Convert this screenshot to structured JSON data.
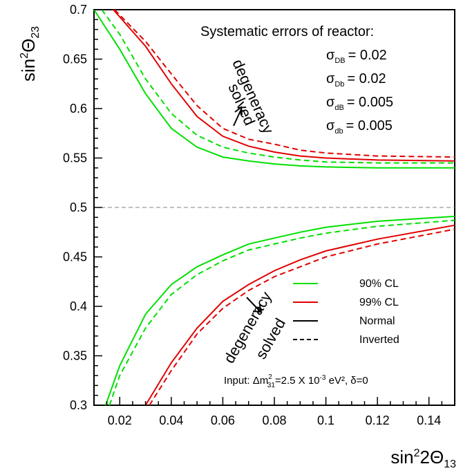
{
  "chart_data": {
    "type": "line",
    "xlabel": "sin²2Θ₁₃",
    "ylabel": "sin²Θ₂₃",
    "xlim": [
      0.01,
      0.15
    ],
    "ylim": [
      0.3,
      0.7
    ],
    "x_ticks": [
      0.02,
      0.04,
      0.06,
      0.08,
      0.1,
      0.12,
      0.14
    ],
    "x_tick_labels": [
      "0.02",
      "0.04",
      "0.06",
      "0.08",
      "0.1",
      "0.12",
      "0.14"
    ],
    "y_ticks": [
      0.3,
      0.35,
      0.4,
      0.45,
      0.5,
      0.55,
      0.6,
      0.65,
      0.7
    ],
    "y_tick_labels": [
      "0.3",
      "0.35",
      "0.4",
      "0.45",
      "0.5",
      "0.55",
      "0.6",
      "0.65",
      "0.7"
    ],
    "reference_line": {
      "y": 0.5,
      "style": "dashed",
      "color": "#808080"
    },
    "series": [
      {
        "name": "90% CL Normal (upper)",
        "color": "#00e000",
        "dash": "solid",
        "x": [
          0.01,
          0.02,
          0.03,
          0.04,
          0.05,
          0.06,
          0.07,
          0.08,
          0.09,
          0.1,
          0.12,
          0.15
        ],
        "y": [
          0.7,
          0.66,
          0.615,
          0.58,
          0.561,
          0.551,
          0.547,
          0.544,
          0.542,
          0.541,
          0.54,
          0.54
        ]
      },
      {
        "name": "90% CL Inverted (upper)",
        "color": "#00e000",
        "dash": "dashed",
        "x": [
          0.013,
          0.02,
          0.03,
          0.04,
          0.05,
          0.06,
          0.07,
          0.08,
          0.09,
          0.1,
          0.12,
          0.15
        ],
        "y": [
          0.7,
          0.675,
          0.63,
          0.595,
          0.573,
          0.561,
          0.555,
          0.551,
          0.548,
          0.546,
          0.545,
          0.545
        ]
      },
      {
        "name": "99% CL Normal (upper)",
        "color": "#e00000",
        "dash": "solid",
        "x": [
          0.0175,
          0.03,
          0.04,
          0.05,
          0.06,
          0.07,
          0.08,
          0.09,
          0.1,
          0.12,
          0.15
        ],
        "y": [
          0.7,
          0.663,
          0.625,
          0.592,
          0.572,
          0.562,
          0.556,
          0.552,
          0.55,
          0.548,
          0.547
        ]
      },
      {
        "name": "99% CL Inverted (upper)",
        "color": "#e00000",
        "dash": "dashed",
        "x": [
          0.018,
          0.03,
          0.04,
          0.05,
          0.06,
          0.07,
          0.08,
          0.09,
          0.1,
          0.12,
          0.15
        ],
        "y": [
          0.7,
          0.668,
          0.635,
          0.603,
          0.58,
          0.569,
          0.564,
          0.558,
          0.555,
          0.552,
          0.551
        ]
      },
      {
        "name": "90% CL Normal (lower)",
        "color": "#00e000",
        "dash": "solid",
        "x": [
          0.0145,
          0.02,
          0.03,
          0.04,
          0.05,
          0.06,
          0.07,
          0.08,
          0.09,
          0.1,
          0.12,
          0.15
        ],
        "y": [
          0.3,
          0.34,
          0.392,
          0.422,
          0.44,
          0.452,
          0.463,
          0.469,
          0.475,
          0.48,
          0.486,
          0.491
        ]
      },
      {
        "name": "90% CL Inverted (lower)",
        "color": "#00e000",
        "dash": "dashed",
        "x": [
          0.016,
          0.02,
          0.03,
          0.04,
          0.05,
          0.06,
          0.07,
          0.08,
          0.09,
          0.1,
          0.12,
          0.15
        ],
        "y": [
          0.3,
          0.33,
          0.378,
          0.412,
          0.432,
          0.446,
          0.457,
          0.463,
          0.469,
          0.474,
          0.481,
          0.487
        ]
      },
      {
        "name": "99% CL Normal (lower)",
        "color": "#e00000",
        "dash": "solid",
        "x": [
          0.03,
          0.04,
          0.05,
          0.06,
          0.07,
          0.08,
          0.09,
          0.1,
          0.12,
          0.15
        ],
        "y": [
          0.3,
          0.343,
          0.378,
          0.405,
          0.422,
          0.436,
          0.447,
          0.456,
          0.468,
          0.482
        ]
      },
      {
        "name": "99% CL Inverted (lower)",
        "color": "#e00000",
        "dash": "dashed",
        "x": [
          0.0315,
          0.04,
          0.05,
          0.06,
          0.07,
          0.08,
          0.09,
          0.1,
          0.12,
          0.15
        ],
        "y": [
          0.3,
          0.335,
          0.372,
          0.398,
          0.416,
          0.43,
          0.44,
          0.45,
          0.463,
          0.478
        ]
      }
    ],
    "legend": {
      "position": "bottom-right",
      "entries": [
        {
          "label": "90% CL",
          "color": "#00e000",
          "dash": "solid"
        },
        {
          "label": "99% CL",
          "color": "#e00000",
          "dash": "solid"
        },
        {
          "label": "Normal",
          "color": "#000000",
          "dash": "solid"
        },
        {
          "label": "Inverted",
          "color": "#000000",
          "dash": "dashed"
        }
      ]
    },
    "info_box": {
      "title": "Systematic errors of reactor:",
      "lines": [
        {
          "symbol": "σ",
          "sub": "DB",
          "value": "= 0.02"
        },
        {
          "symbol": "σ",
          "sub": "Db",
          "value": "= 0.02"
        },
        {
          "symbol": "σ",
          "sub": "dB",
          "value": "= 0.005"
        },
        {
          "symbol": "σ",
          "sub": "db",
          "value": "= 0.005"
        }
      ]
    },
    "input_note": {
      "prefix": "Input: Δm",
      "sup": "2",
      "sub": "31",
      "mid": "=2.5 X 10",
      "exp": "-3",
      "suffix": " eV², δ=0"
    },
    "annotations": [
      {
        "text1": "degeneracy",
        "text2": "solved"
      },
      {
        "text1": "degeneracy",
        "text2": "solved"
      }
    ]
  }
}
